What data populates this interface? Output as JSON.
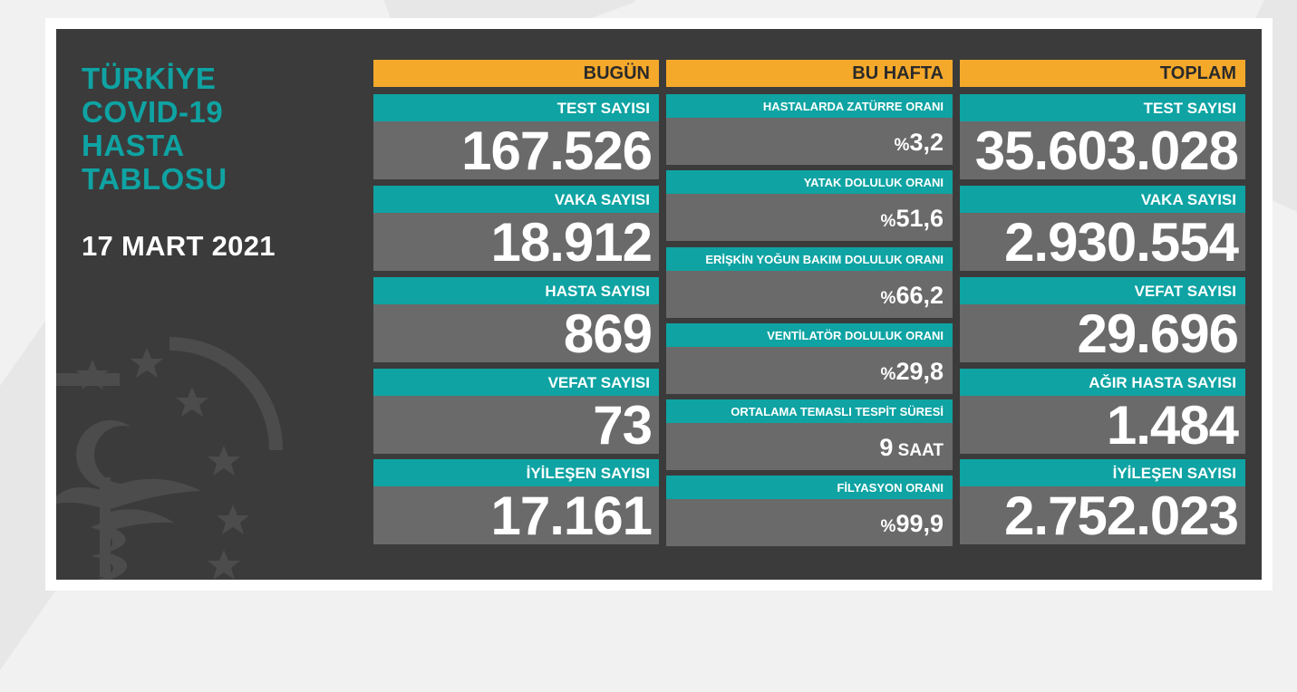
{
  "title_lines": [
    "TÜRKİYE",
    "COVID-19",
    "HASTA",
    "TABLOSU"
  ],
  "date": "17 MART 2021",
  "colors": {
    "teal": "#0fa3a3",
    "orange": "#f5a92b",
    "panel": "#3b3b3b",
    "card": "#6a6a6a"
  },
  "today": {
    "header": "BUGÜN",
    "items": [
      {
        "label": "TEST SAYISI",
        "value": "167.526"
      },
      {
        "label": "VAKA SAYISI",
        "value": "18.912"
      },
      {
        "label": "HASTA SAYISI",
        "value": "869"
      },
      {
        "label": "VEFAT SAYISI",
        "value": "73"
      },
      {
        "label": "İYİLEŞEN SAYISI",
        "value": "17.161"
      }
    ]
  },
  "week": {
    "header": "BU HAFTA",
    "items": [
      {
        "label": "HASTALARDA ZATÜRRE ORANI",
        "prefix": "%",
        "value": "3,2",
        "suffix": ""
      },
      {
        "label": "YATAK DOLULUK ORANI",
        "prefix": "%",
        "value": "51,6",
        "suffix": ""
      },
      {
        "label": "ERİŞKİN YOĞUN BAKIM DOLULUK ORANI",
        "prefix": "%",
        "value": "66,2",
        "suffix": ""
      },
      {
        "label": "VENTİLATÖR DOLULUK ORANI",
        "prefix": "%",
        "value": "29,8",
        "suffix": ""
      },
      {
        "label": "ORTALAMA TEMASLI TESPİT SÜRESİ",
        "prefix": "",
        "value": "9",
        "suffix": " SAAT"
      },
      {
        "label": "FİLYASYON ORANI",
        "prefix": "%",
        "value": "99,9",
        "suffix": ""
      }
    ]
  },
  "total": {
    "header": "TOPLAM",
    "items": [
      {
        "label": "TEST SAYISI",
        "value": "35.603.028"
      },
      {
        "label": "VAKA SAYISI",
        "value": "2.930.554"
      },
      {
        "label": "VEFAT SAYISI",
        "value": "29.696"
      },
      {
        "label": "AĞIR HASTA SAYISI",
        "value": "1.484"
      },
      {
        "label": "İYİLEŞEN SAYISI",
        "value": "2.752.023"
      }
    ]
  }
}
